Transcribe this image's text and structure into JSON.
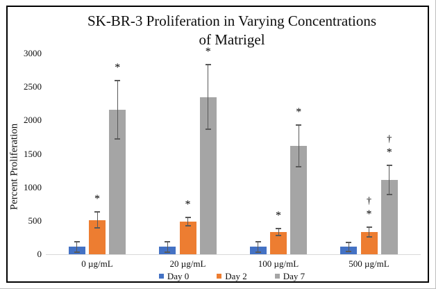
{
  "figure": {
    "frame_border_color": "#000000",
    "background_color": "#ffffff"
  },
  "chart_data": {
    "type": "bar",
    "title": "SK-BR-3 Proliferation in Varying Concentrations of Matrigel",
    "title_lines": [
      "SK-BR-3 Proliferation in Varying Concentrations",
      "of Matrigel"
    ],
    "xlabel": "",
    "ylabel": "Percent Proliferation",
    "ylim": [
      0,
      3000
    ],
    "yticks": [
      0,
      500,
      1000,
      1500,
      2000,
      2500,
      3000
    ],
    "grid": false,
    "axis_line_color": "#D9D9D9",
    "error_bar_color": "#595959",
    "legend_position": "bottom",
    "categories": [
      "0 µg/mL",
      "20 µg/mL",
      "100 µg/mL",
      "500 µg/mL"
    ],
    "series": [
      {
        "name": "Day 0",
        "color": "#4472C4",
        "values": [
          110,
          110,
          110,
          110
        ],
        "errors": [
          90,
          85,
          85,
          75
        ],
        "annotations": [
          [],
          [],
          [],
          []
        ]
      },
      {
        "name": "Day 2",
        "color": "#ED7D31",
        "values": [
          510,
          490,
          330,
          330
        ],
        "errors": [
          130,
          75,
          60,
          85
        ],
        "annotations": [
          [
            "*"
          ],
          [
            "*"
          ],
          [
            "*"
          ],
          [
            "*",
            "†"
          ]
        ]
      },
      {
        "name": "Day 7",
        "color": "#A5A5A5",
        "values": [
          2160,
          2350,
          1620,
          1110
        ],
        "errors": [
          450,
          490,
          320,
          230
        ],
        "annotations": [
          [
            "*"
          ],
          [
            "*"
          ],
          [
            "*"
          ],
          [
            "*",
            "†"
          ]
        ]
      }
    ]
  }
}
